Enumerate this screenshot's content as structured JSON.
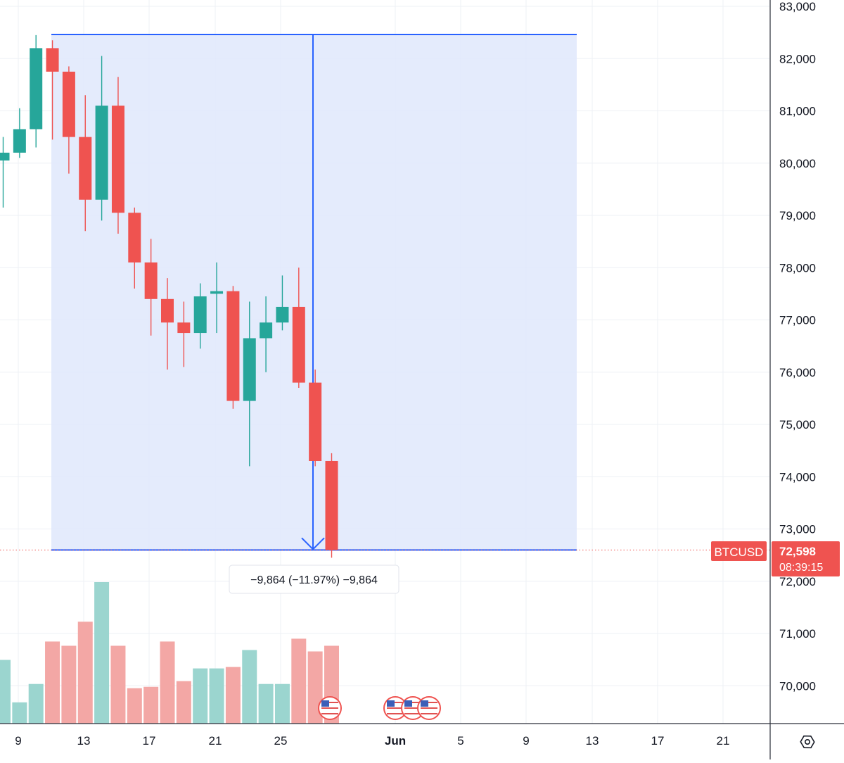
{
  "chart_data": {
    "type": "candlestick",
    "symbol": "BTCUSD",
    "last_price": 72598,
    "last_price_label": "72,598",
    "countdown": "08:39:15",
    "y_axis": {
      "ylim": [
        69500,
        83000
      ],
      "ticks": [
        70000,
        71000,
        72000,
        73000,
        74000,
        75000,
        76000,
        77000,
        78000,
        79000,
        80000,
        81000,
        82000,
        83000
      ],
      "tick_labels": [
        "70,000",
        "71,000",
        "72,000",
        "73,000",
        "74,000",
        "75,000",
        "76,000",
        "77,000",
        "78,000",
        "79,000",
        "80,000",
        "81,000",
        "82,000",
        "83,000"
      ]
    },
    "x_axis": {
      "tick_labels": [
        "9",
        "13",
        "17",
        "21",
        "25",
        "Jun",
        "5",
        "9",
        "13",
        "17",
        "21"
      ]
    },
    "candles": [
      {
        "o": 80050,
        "h": 80500,
        "l": 79150,
        "c": 80200
      },
      {
        "o": 80200,
        "h": 81050,
        "l": 80100,
        "c": 80650
      },
      {
        "o": 80650,
        "h": 82450,
        "l": 80300,
        "c": 82200
      },
      {
        "o": 82200,
        "h": 82350,
        "l": 80450,
        "c": 81750
      },
      {
        "o": 81750,
        "h": 81850,
        "l": 79800,
        "c": 80500
      },
      {
        "o": 80500,
        "h": 81300,
        "l": 78700,
        "c": 79300
      },
      {
        "o": 79300,
        "h": 82050,
        "l": 78900,
        "c": 81100
      },
      {
        "o": 81100,
        "h": 81650,
        "l": 78650,
        "c": 79050
      },
      {
        "o": 79050,
        "h": 79150,
        "l": 77600,
        "c": 78100
      },
      {
        "o": 78100,
        "h": 78550,
        "l": 76700,
        "c": 77400
      },
      {
        "o": 77400,
        "h": 77800,
        "l": 76050,
        "c": 76950
      },
      {
        "o": 76950,
        "h": 77350,
        "l": 76100,
        "c": 76750
      },
      {
        "o": 76750,
        "h": 77700,
        "l": 76450,
        "c": 77450
      },
      {
        "o": 77500,
        "h": 78100,
        "l": 76750,
        "c": 77550
      },
      {
        "o": 77550,
        "h": 77650,
        "l": 75300,
        "c": 75450
      },
      {
        "o": 75450,
        "h": 77350,
        "l": 74200,
        "c": 76650
      },
      {
        "o": 76650,
        "h": 77450,
        "l": 76000,
        "c": 76950
      },
      {
        "o": 76950,
        "h": 77850,
        "l": 76800,
        "c": 77250
      },
      {
        "o": 77250,
        "h": 78000,
        "l": 75700,
        "c": 75800
      },
      {
        "o": 75800,
        "h": 76050,
        "l": 74200,
        "c": 74300
      },
      {
        "o": 74300,
        "h": 74450,
        "l": 72450,
        "c": 72598
      }
    ],
    "volume_relative": [
      0.45,
      0.15,
      0.28,
      0.58,
      0.55,
      0.72,
      1.0,
      0.55,
      0.25,
      0.26,
      0.58,
      0.3,
      0.39,
      0.39,
      0.4,
      0.52,
      0.28,
      0.28,
      0.6,
      0.51,
      0.55
    ],
    "measure": {
      "from_price": 82462,
      "to_price": 72598,
      "label": "−9,864 (−11.97%) −9,864"
    },
    "event_markers": 4,
    "colors": {
      "up": "#26a69a",
      "down": "#ef5350",
      "up_volume": "#9bd5cf",
      "down_volume": "#f3a7a5",
      "measure_line": "#2962ff",
      "measure_fill": "#dfe7fb",
      "price_tag": "#ef5350",
      "grid": "#eef0f5"
    }
  }
}
